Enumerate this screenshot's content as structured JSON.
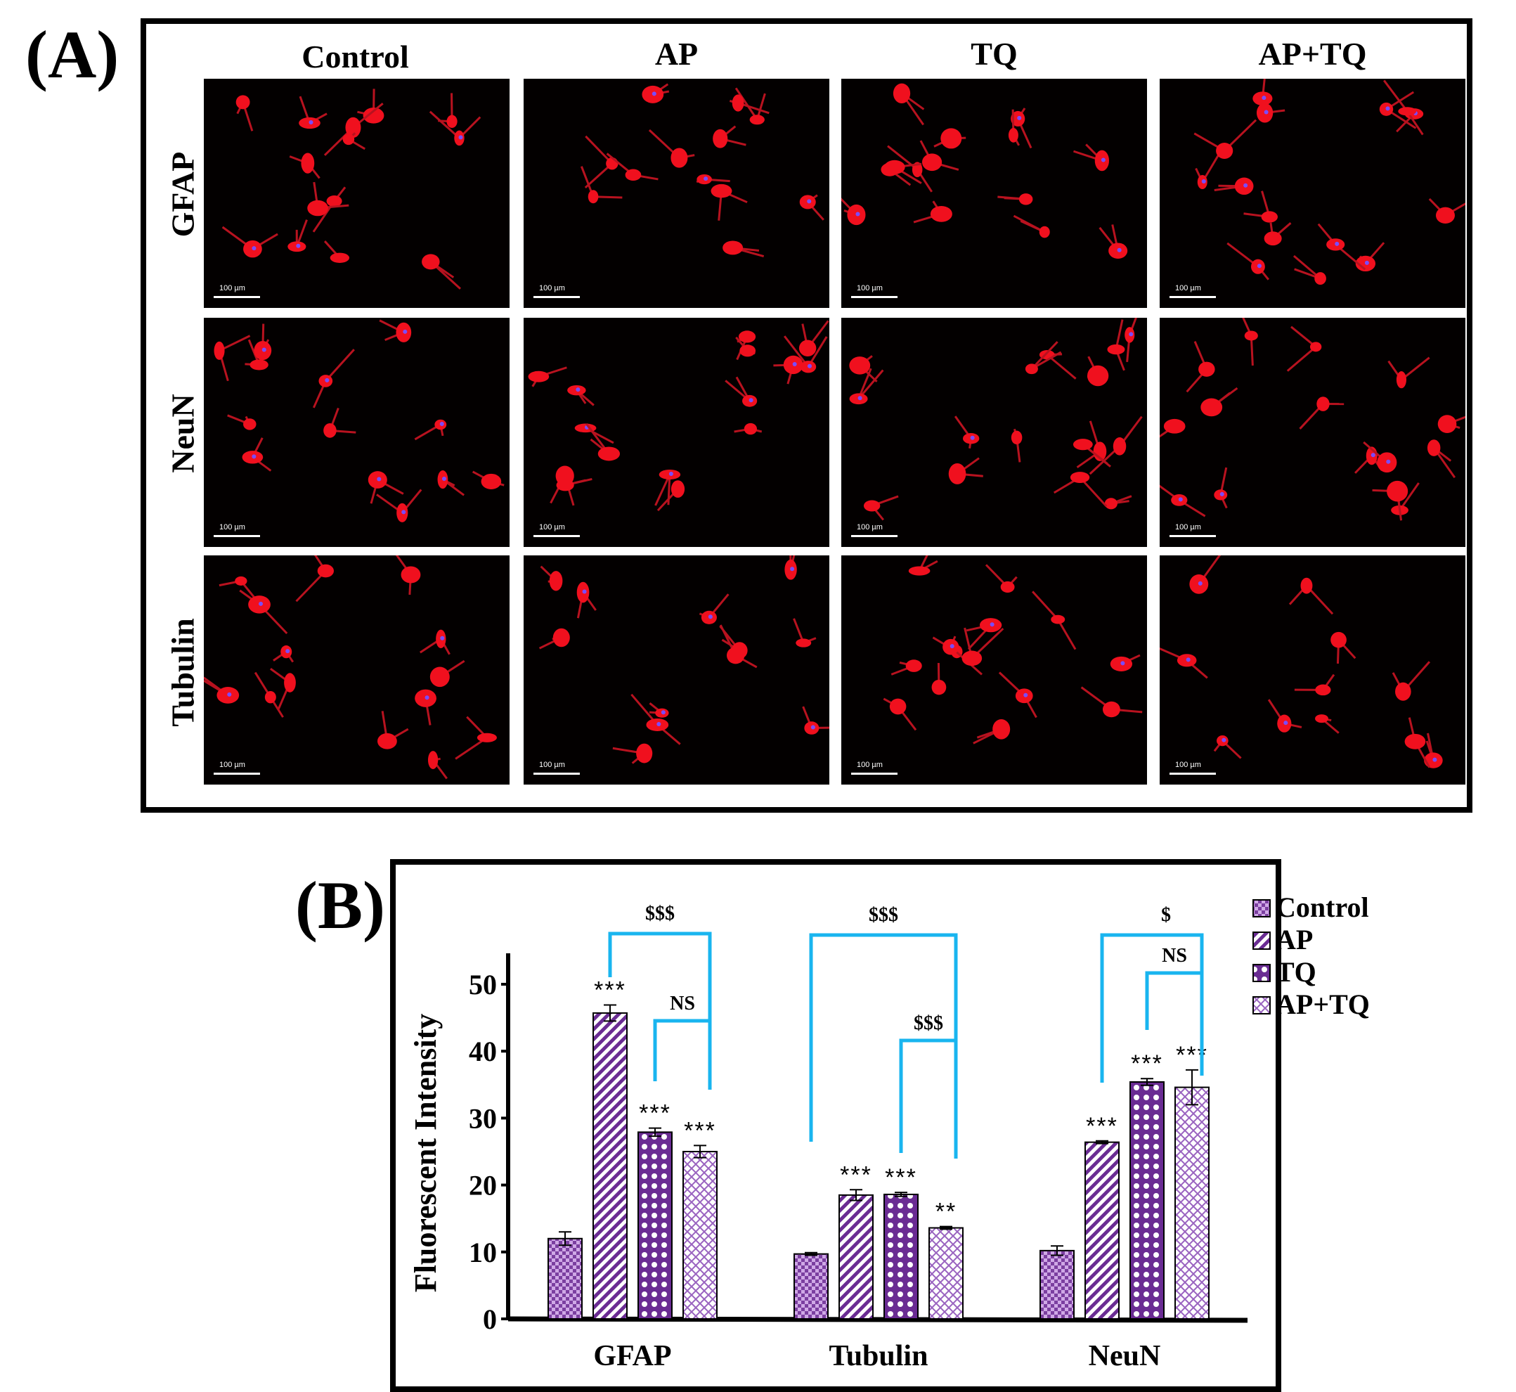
{
  "panelA": {
    "label": "(A)",
    "columns": [
      "Control",
      "AP",
      "TQ",
      "AP+TQ"
    ],
    "rows": [
      "GFAP",
      "NeuN",
      "Tubulin"
    ],
    "scale_bar": "100 µm"
  },
  "panelB": {
    "label": "(B)"
  },
  "chart_data": {
    "type": "bar",
    "title": "",
    "xlabel": "",
    "ylabel": "Fluorescent Intensity",
    "ylim": [
      0,
      55
    ],
    "yticks": [
      0,
      10,
      20,
      30,
      40,
      50
    ],
    "categories": [
      "GFAP",
      "Tubulin",
      "NeuN"
    ],
    "series": [
      {
        "name": "Control",
        "values": [
          12,
          9.7,
          10.2
        ],
        "errors": [
          1.0,
          0.2,
          0.7
        ]
      },
      {
        "name": "AP",
        "values": [
          45.7,
          18.5,
          26.4
        ],
        "errors": [
          1.2,
          0.8,
          0.2
        ]
      },
      {
        "name": "TQ",
        "values": [
          27.9,
          18.6,
          35.4
        ],
        "errors": [
          0.6,
          0.3,
          0.5
        ]
      },
      {
        "name": "AP+TQ",
        "values": [
          25,
          13.6,
          34.6
        ],
        "errors": [
          0.9,
          0.2,
          2.6
        ]
      }
    ],
    "significance": [
      [
        "",
        "***",
        "***",
        "***"
      ],
      [
        "",
        "***",
        "***",
        "**"
      ],
      [
        "",
        "***",
        "***",
        "***"
      ]
    ],
    "comparisons": [
      {
        "category": "GFAP",
        "outer": "$$$",
        "inner": "NS"
      },
      {
        "category": "Tubulin",
        "outer": "$$$",
        "inner": "$$$"
      },
      {
        "category": "NeuN",
        "outer": "$",
        "inner": "NS"
      }
    ],
    "legend_position": "top-right",
    "colors": {
      "bar_fill": "#7b3fa0",
      "bar_light": "#ffffff",
      "bracket": "#19b5ef",
      "axis": "#000000"
    }
  }
}
